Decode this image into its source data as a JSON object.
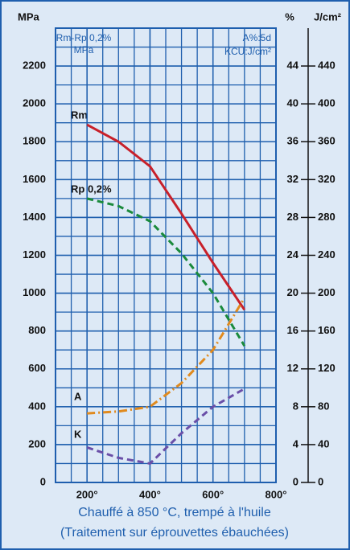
{
  "chart_data": {
    "type": "line",
    "y_label": "MPa",
    "y2_label": "%",
    "y3_label": "J/cm²",
    "annotations": [
      "Rm-Rp 0,2%",
      "MPa",
      "A%:5d",
      "KCU:J/cm²"
    ],
    "caption": [
      "Chauffé à 850 °C, trempé à l'huile",
      "(Traitement sur éprouvettes ébauchées)"
    ],
    "x": [
      200,
      300,
      400,
      500,
      600,
      700
    ],
    "xlim": [
      100,
      800
    ],
    "xticks": [
      {
        "value": 200,
        "label": "200°"
      },
      {
        "value": 400,
        "label": "400°"
      },
      {
        "value": 600,
        "label": "600°"
      },
      {
        "value": 800,
        "label": "800°"
      }
    ],
    "ylim": [
      0,
      2400
    ],
    "yticks": [
      0,
      200,
      400,
      600,
      800,
      1000,
      1200,
      1400,
      1600,
      1800,
      2000,
      2200
    ],
    "y2lim": [
      0,
      48
    ],
    "y2ticks": [
      0,
      4,
      8,
      12,
      16,
      20,
      24,
      28,
      32,
      36,
      40,
      44
    ],
    "y3lim": [
      0,
      480
    ],
    "y3ticks": [
      0,
      40,
      80,
      120,
      160,
      200,
      240,
      280,
      320,
      360,
      400,
      440
    ],
    "grid": true,
    "series": [
      {
        "name": "Rm",
        "color": "#c8202a",
        "dash": "solid",
        "values": [
          1890,
          1800,
          1670,
          1420,
          1160,
          912
        ]
      },
      {
        "name": "Rp 0,2%",
        "color": "#1a8a3c",
        "dash": "dashed",
        "values": [
          1500,
          1460,
          1380,
          1210,
          1000,
          721
        ]
      },
      {
        "name": "A",
        "color": "#e08a1e",
        "dash": "dashdot",
        "axis": "y2",
        "values": [
          7.3,
          7.5,
          8,
          10.5,
          14,
          19.5
        ]
      },
      {
        "name": "K",
        "color": "#6a4fa8",
        "dash": "dashed",
        "axis": "y3",
        "values": [
          37,
          26,
          20,
          52,
          80,
          99
        ]
      }
    ]
  }
}
